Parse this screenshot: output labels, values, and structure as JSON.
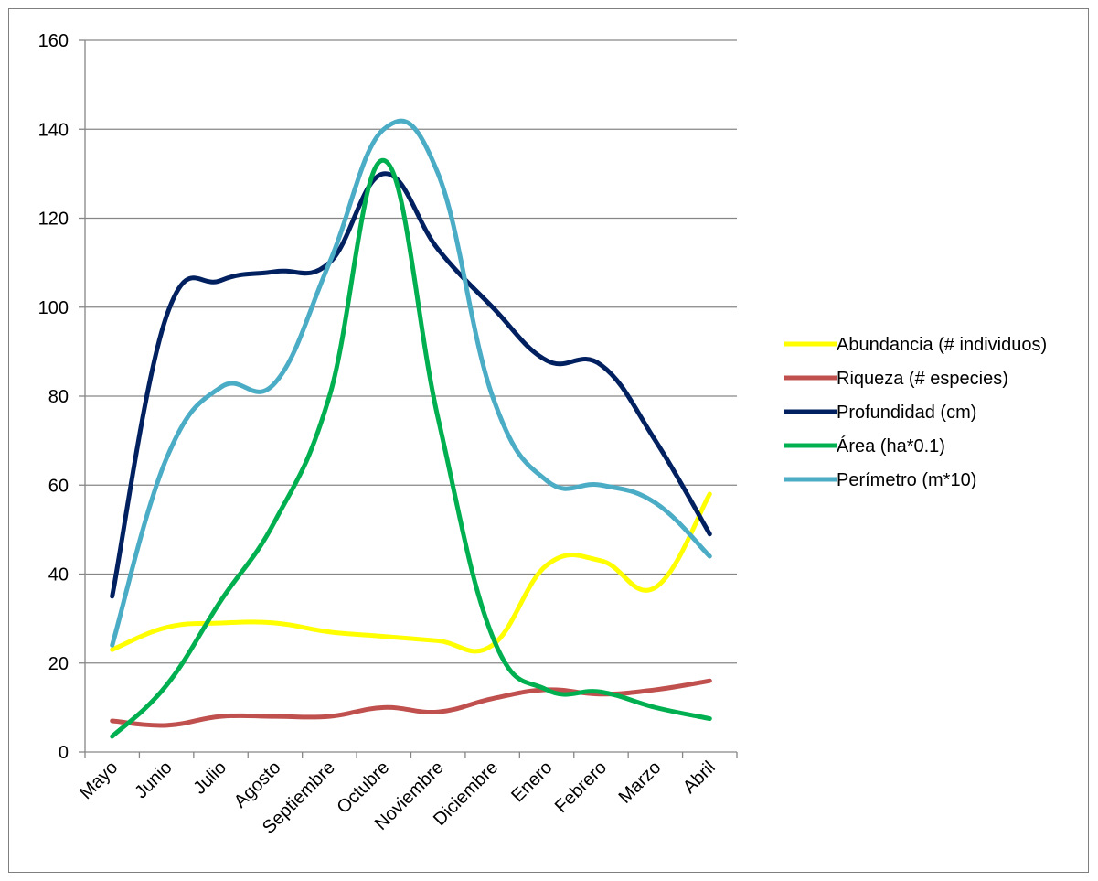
{
  "chart_data": {
    "type": "line",
    "smooth": true,
    "categories": [
      "Mayo",
      "Junio",
      "Julio",
      "Agosto",
      "Septiembre",
      "Octubre",
      "Noviembre",
      "Diciembre",
      "Enero",
      "Febrero",
      "Marzo",
      "Abril"
    ],
    "series": [
      {
        "name": "Abundancia (# individuos)",
        "color": "#FFFF00",
        "values": [
          23,
          28,
          29,
          29,
          27,
          26,
          25,
          24,
          42,
          43,
          37,
          58
        ]
      },
      {
        "name": "Riqueza (# especies)",
        "color": "#C0504D",
        "values": [
          7,
          6,
          8,
          8,
          8,
          10,
          9,
          12,
          14,
          13,
          14,
          16
        ]
      },
      {
        "name": "Profundidad (cm)",
        "color": "#002060",
        "values": [
          35,
          98,
          106,
          108,
          110,
          130,
          113,
          100,
          88,
          87,
          70,
          49
        ]
      },
      {
        "name": "Área (ha*0.1)",
        "color": "#00B050",
        "values": [
          3.5,
          15,
          34,
          52,
          80,
          133,
          75,
          26,
          14,
          13.5,
          10,
          7.5
        ]
      },
      {
        "name": "Perímetro (m*10)",
        "color": "#4BACC6",
        "values": [
          24,
          66,
          82,
          83,
          110,
          140,
          130,
          80,
          61,
          60,
          56,
          44
        ]
      }
    ],
    "ylim": [
      0,
      160
    ],
    "yticks": [
      "0",
      "20",
      "40",
      "60",
      "80",
      "100",
      "120",
      "140",
      "160"
    ],
    "grid": true,
    "legend": "right",
    "title": "",
    "xlabel": "",
    "ylabel": ""
  }
}
